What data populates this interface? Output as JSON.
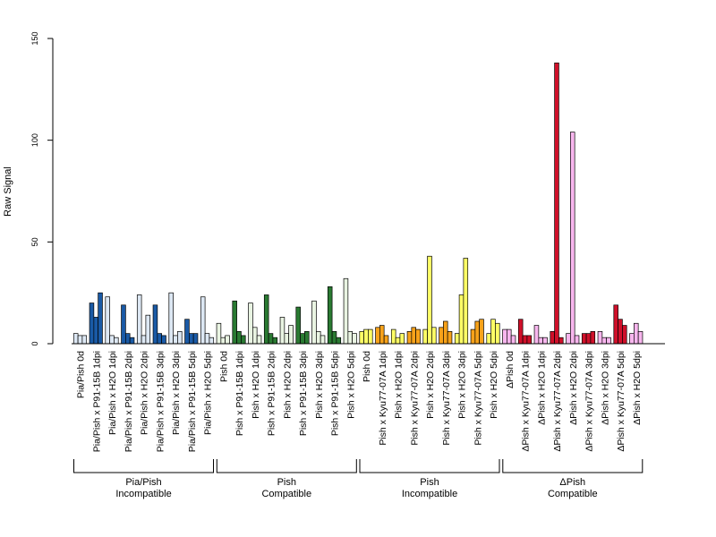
{
  "chart_data": {
    "type": "bar",
    "ylabel": "Raw Signal",
    "ylim": [
      0,
      150
    ],
    "yticks": [
      0,
      50,
      100,
      150
    ],
    "grid": false,
    "categories": [
      "Pia/Pish 0d",
      "Pia/Pish x P91-15B 1dpi",
      "Pia/Pish x H2O 1dpi",
      "Pia/Pish x P91-15B 2dpi",
      "Pia/Pish x H2O 2dpi",
      "Pia/Pish x P91-15B 3dpi",
      "Pia/Pish x H2O 3dpi",
      "Pia/Pish x P91-15B 5dpi",
      "Pia/Pish x H2O 5dpi",
      "Pish 0d",
      "Pish x P91-15B 1dpi",
      "Pish x H2O 1dpi",
      "Pish x P91-15B 2dpi",
      "Pish x H2O 2dpi",
      "Pish x P91-15B 3dpi",
      "Pish x H2O 3dpi",
      "Pish x P91-15B 5dpi",
      "Pish x H2O 5dpi",
      "Pish 0d",
      "Pish x Kyu77-07A 1dpi",
      "Pish x H2O 1dpi",
      "Pish x Kyu77-07A 2dpi",
      "Pish x H2O 2dpi",
      "Pish x Kyu77-07A 3dpi",
      "Pish x H2O 3dpi",
      "Pish x Kyu77-07A 5dpi",
      "Pish x H2O 5dpi",
      "ΔPish 0d",
      "ΔPish x Kyu77-07A 1dpi",
      "ΔPish x H2O 1dpi",
      "ΔPish x Kyu77-07A 2dpi",
      "ΔPish x H2O 2dpi",
      "ΔPish x Kyu77-07A 3dpi",
      "ΔPish x H2O 3dpi",
      "ΔPish x Kyu77-07A 5dpi",
      "ΔPish x H2O 5dpi"
    ],
    "values": [
      [
        5,
        4,
        4
      ],
      [
        20,
        13,
        25
      ],
      [
        23,
        4,
        3
      ],
      [
        19,
        5,
        3
      ],
      [
        24,
        4,
        14
      ],
      [
        19,
        5,
        4
      ],
      [
        25,
        4,
        6
      ],
      [
        12,
        5,
        5
      ],
      [
        23,
        5,
        3
      ],
      [
        10,
        3,
        4
      ],
      [
        21,
        6,
        4
      ],
      [
        20,
        8,
        4
      ],
      [
        24,
        5,
        3
      ],
      [
        13,
        5,
        9
      ],
      [
        18,
        5,
        6
      ],
      [
        21,
        6,
        4
      ],
      [
        28,
        6,
        3
      ],
      [
        32,
        6,
        5
      ],
      [
        6,
        7,
        7
      ],
      [
        8,
        9,
        4
      ],
      [
        7,
        3,
        5
      ],
      [
        6,
        8,
        7
      ],
      [
        7,
        43,
        8
      ],
      [
        8,
        11,
        6
      ],
      [
        5,
        24,
        42
      ],
      [
        7,
        11,
        12
      ],
      [
        5,
        12,
        10
      ],
      [
        7,
        7,
        4
      ],
      [
        12,
        4,
        4
      ],
      [
        9,
        3,
        3
      ],
      [
        6,
        138,
        3
      ],
      [
        5,
        104,
        4
      ],
      [
        5,
        5,
        6
      ],
      [
        6,
        3,
        3
      ],
      [
        19,
        12,
        9
      ],
      [
        5,
        10,
        6
      ]
    ],
    "group_colors": [
      [
        "#dde8f4",
        "#1a5aa6"
      ],
      [
        "#e9f4e2",
        "#2a7a32"
      ],
      [
        "#ffff66",
        "#f7a21a"
      ],
      [
        "#f8b6ee",
        "#d0102a"
      ]
    ],
    "bar_colors": [
      "light",
      "dark",
      "light",
      "dark",
      "light",
      "dark",
      "light",
      "dark",
      "light",
      "light",
      "dark",
      "light",
      "dark",
      "light",
      "dark",
      "light",
      "dark",
      "light",
      "light",
      "dark",
      "light",
      "dark",
      "light",
      "dark",
      "light",
      "dark",
      "light",
      "light",
      "dark",
      "light",
      "dark",
      "light",
      "dark",
      "light",
      "dark",
      "light"
    ],
    "groups": [
      {
        "line1": "Pia/Pish",
        "line2": "Incompatible",
        "start": 0,
        "end": 8
      },
      {
        "line1": "Pish",
        "line2": "Compatible",
        "start": 9,
        "end": 17
      },
      {
        "line1": "Pish",
        "line2": "Incompatible",
        "start": 18,
        "end": 26
      },
      {
        "line1": "ΔPish",
        "line2": "Compatible",
        "start": 27,
        "end": 35
      }
    ]
  }
}
